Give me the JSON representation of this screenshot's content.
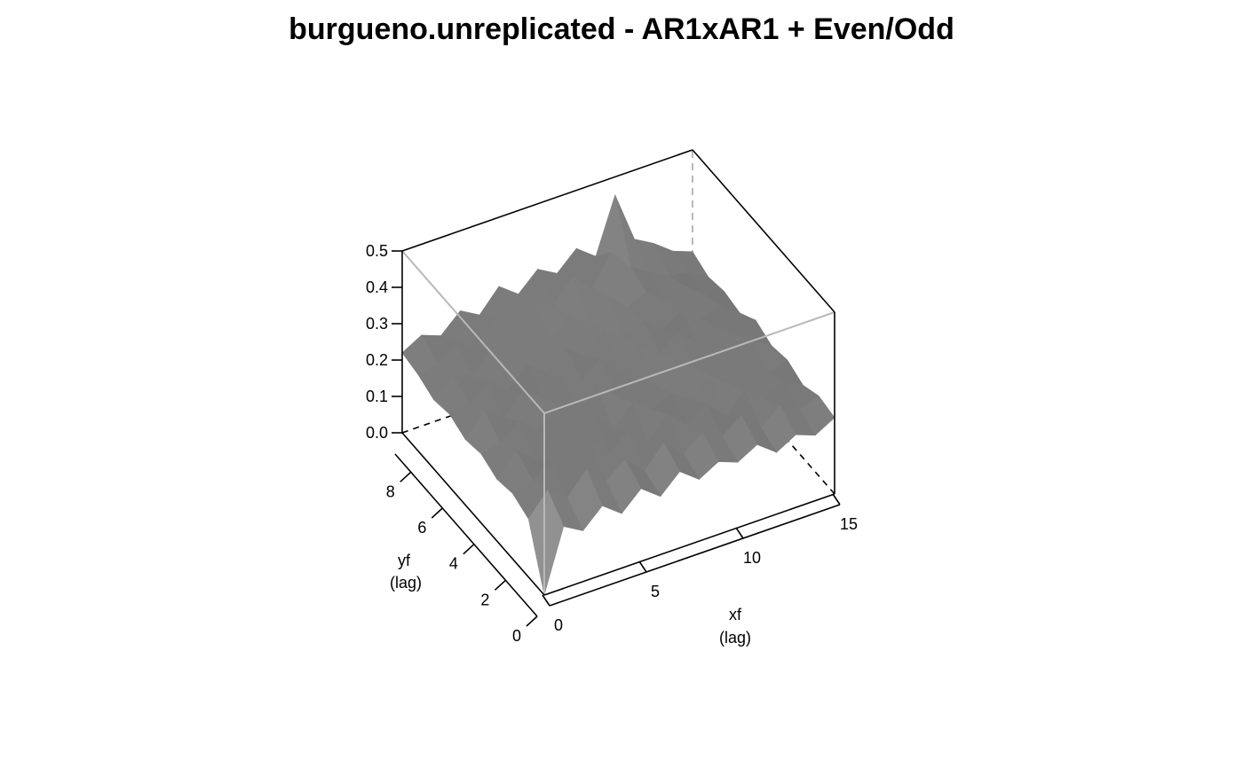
{
  "chart_data": {
    "type": "surface3d",
    "title": "burgueno.unreplicated - AR1xAR1 + Even/Odd",
    "xlabel": "xf",
    "xlabel_sub": "(lag)",
    "ylabel": "yf",
    "ylabel_sub": "(lag)",
    "xlim": [
      0,
      15
    ],
    "ylim": [
      0,
      9
    ],
    "zlim": [
      0,
      0.5
    ],
    "x_ticks": [
      0,
      5,
      10,
      15
    ],
    "y_ticks": [
      0,
      2,
      4,
      6,
      8
    ],
    "z_ticks": [
      0.0,
      0.1,
      0.2,
      0.3,
      0.4,
      0.5
    ],
    "z_tick_labels": [
      "0.0",
      "0.1",
      "0.2",
      "0.3",
      "0.4",
      "0.5"
    ],
    "colors": {
      "surface_light": "#bdbdbd",
      "surface_dark": "#2a2a2a",
      "box_back": "#b9b9b9",
      "box_front": "#000000"
    },
    "surface_note_from_image": "variogram surface, near zero at origin, rising to about 0.2-0.25 elsewhere with alternating ridges",
    "z": [
      [
        0.0,
        0.17,
        0.14,
        0.19,
        0.15,
        0.2,
        0.16,
        0.21,
        0.17,
        0.2,
        0.18,
        0.21,
        0.17,
        0.2,
        0.18,
        0.21
      ],
      [
        0.16,
        0.22,
        0.18,
        0.24,
        0.19,
        0.23,
        0.18,
        0.24,
        0.19,
        0.23,
        0.2,
        0.24,
        0.19,
        0.23,
        0.2,
        0.22
      ],
      [
        0.18,
        0.2,
        0.23,
        0.19,
        0.25,
        0.2,
        0.24,
        0.19,
        0.25,
        0.2,
        0.24,
        0.19,
        0.24,
        0.2,
        0.23,
        0.2
      ],
      [
        0.17,
        0.23,
        0.19,
        0.24,
        0.2,
        0.26,
        0.19,
        0.25,
        0.21,
        0.24,
        0.2,
        0.25,
        0.21,
        0.24,
        0.2,
        0.22
      ],
      [
        0.19,
        0.2,
        0.24,
        0.2,
        0.25,
        0.21,
        0.26,
        0.22,
        0.25,
        0.21,
        0.26,
        0.22,
        0.25,
        0.21,
        0.24,
        0.21
      ],
      [
        0.18,
        0.24,
        0.2,
        0.26,
        0.22,
        0.25,
        0.23,
        0.27,
        0.22,
        0.26,
        0.23,
        0.27,
        0.22,
        0.25,
        0.21,
        0.23
      ],
      [
        0.2,
        0.21,
        0.25,
        0.21,
        0.26,
        0.22,
        0.27,
        0.23,
        0.28,
        0.24,
        0.27,
        0.23,
        0.26,
        0.22,
        0.24,
        0.2
      ],
      [
        0.19,
        0.24,
        0.22,
        0.27,
        0.23,
        0.28,
        0.24,
        0.29,
        0.25,
        0.31,
        0.26,
        0.28,
        0.24,
        0.26,
        0.22,
        0.21
      ],
      [
        0.21,
        0.22,
        0.26,
        0.23,
        0.29,
        0.25,
        0.3,
        0.27,
        0.33,
        0.28,
        0.36,
        0.3,
        0.27,
        0.24,
        0.23,
        0.2
      ],
      [
        0.22,
        0.25,
        0.23,
        0.28,
        0.25,
        0.31,
        0.27,
        0.32,
        0.29,
        0.34,
        0.3,
        0.45,
        0.31,
        0.28,
        0.24,
        0.22
      ]
    ]
  }
}
